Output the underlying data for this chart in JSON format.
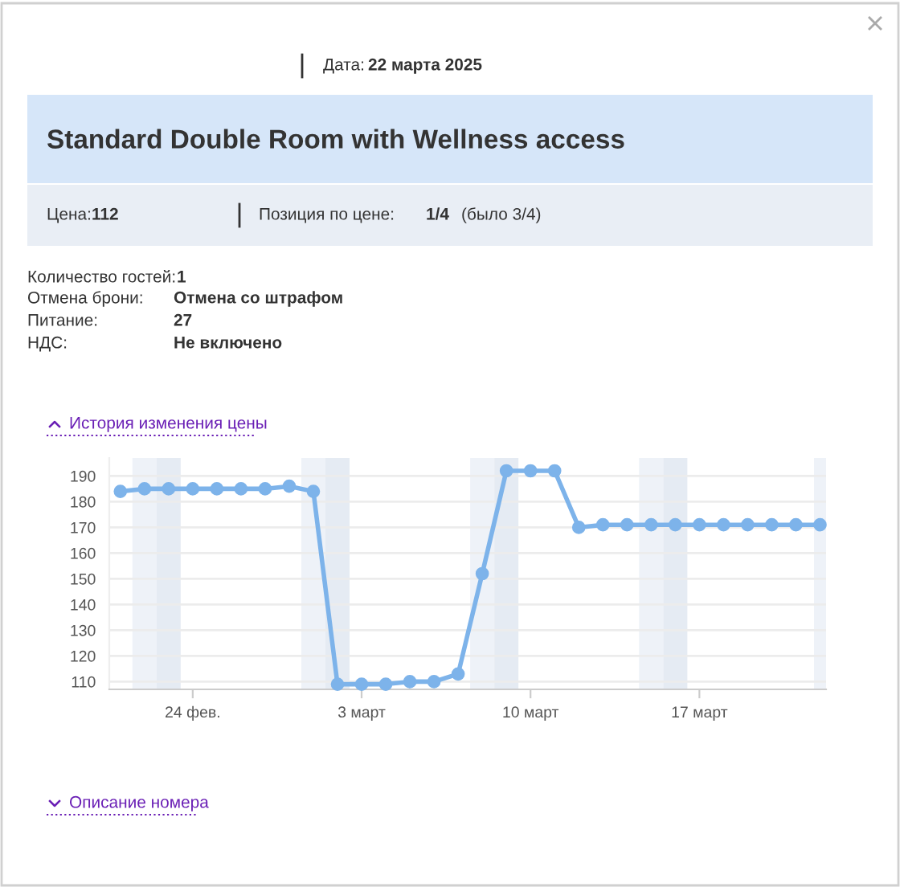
{
  "chart_data": {
    "type": "line",
    "title": "Standard Double Room with Wellness access",
    "annotations": [
      "Дата:",
      "22 марта 2025",
      "Цена:",
      "112",
      "Позиция по цене:",
      "1/4",
      "(было 3/4)",
      "Количество гостей:",
      "1",
      "Отмена брони:",
      "Отмена со штрафом",
      "Питание:",
      "27",
      "НДС:",
      "Не включено",
      "История изменения цены",
      "Описание номера"
    ],
    "x": [
      "2025-02-21",
      "2025-02-22",
      "2025-02-23",
      "2025-02-24",
      "2025-02-25",
      "2025-02-26",
      "2025-02-27",
      "2025-02-28",
      "2025-03-01",
      "2025-03-02",
      "2025-03-03",
      "2025-03-04",
      "2025-03-05",
      "2025-03-06",
      "2025-03-07",
      "2025-03-08",
      "2025-03-09",
      "2025-03-10",
      "2025-03-11",
      "2025-03-12",
      "2025-03-13",
      "2025-03-14",
      "2025-03-15",
      "2025-03-16",
      "2025-03-17",
      "2025-03-18",
      "2025-03-19",
      "2025-03-20",
      "2025-03-21",
      "2025-03-22"
    ],
    "series": [
      {
        "color": "#7db3ea",
        "values": [
          184,
          185,
          185,
          185,
          185,
          185,
          185,
          186,
          184,
          109,
          109,
          109,
          110,
          110,
          113,
          152,
          192,
          192,
          192,
          170,
          171,
          171,
          171,
          171,
          171,
          171,
          171,
          171,
          171,
          171
        ]
      }
    ],
    "xlim": [
      "2025-02-20T13:00",
      "2025-03-22T06:00"
    ],
    "xticks": [
      {
        "value": "2025-02-24",
        "label": "24 фев."
      },
      {
        "value": "2025-03-03",
        "label": "3 март"
      },
      {
        "value": "2025-03-10",
        "label": "10 март"
      },
      {
        "value": "2025-03-17",
        "label": "17 март"
      }
    ],
    "ylim": [
      107,
      197
    ],
    "yticks": [
      110,
      120,
      130,
      140,
      150,
      160,
      170,
      180,
      190
    ],
    "bands": [
      {
        "axis": "x",
        "from": "2025-02-21T12:00",
        "to": "2025-02-22T12:00",
        "color": "#eef2f8"
      },
      {
        "axis": "x",
        "from": "2025-02-22T12:00",
        "to": "2025-02-23T12:00",
        "color": "#e5ebf3"
      },
      {
        "axis": "x",
        "from": "2025-02-28T12:00",
        "to": "2025-03-01T12:00",
        "color": "#eef2f8"
      },
      {
        "axis": "x",
        "from": "2025-03-01T12:00",
        "to": "2025-03-02T12:00",
        "color": "#e5ebf3"
      },
      {
        "axis": "x",
        "from": "2025-03-07T12:00",
        "to": "2025-03-08T12:00",
        "color": "#eef2f8"
      },
      {
        "axis": "x",
        "from": "2025-03-08T12:00",
        "to": "2025-03-09T12:00",
        "color": "#e5ebf3"
      },
      {
        "axis": "x",
        "from": "2025-03-14T12:00",
        "to": "2025-03-15T12:00",
        "color": "#eef2f8"
      },
      {
        "axis": "x",
        "from": "2025-03-15T12:00",
        "to": "2025-03-16T12:00",
        "color": "#e5ebf3"
      },
      {
        "axis": "x",
        "from": "2025-03-21T18:00",
        "to": "2025-03-22T06:00",
        "color": "#eef2f8"
      }
    ],
    "grid": "y",
    "marker": "circle",
    "line_style": "solid",
    "legend": false
  }
}
